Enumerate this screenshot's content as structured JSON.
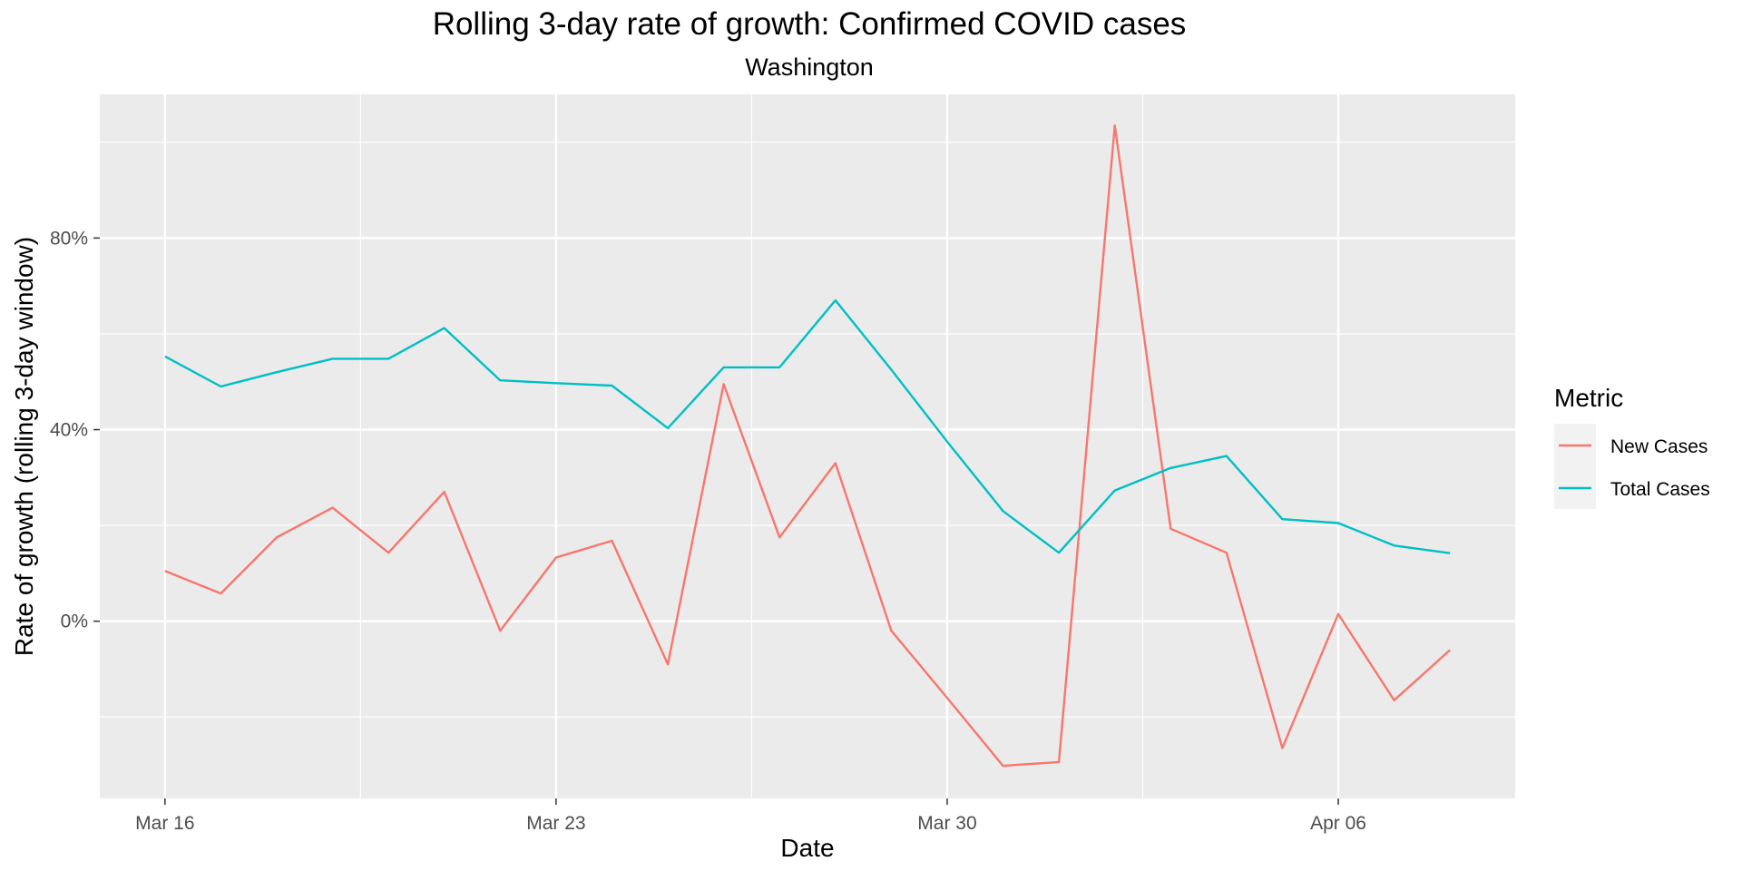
{
  "chart_data": {
    "type": "line",
    "title": "Rolling 3-day rate of growth: Confirmed COVID cases",
    "subtitle": "Washington",
    "xlabel": "Date",
    "ylabel": "Rate of growth (rolling 3-day window)",
    "x": [
      "2020-03-16",
      "2020-03-17",
      "2020-03-18",
      "2020-03-19",
      "2020-03-20",
      "2020-03-21",
      "2020-03-22",
      "2020-03-23",
      "2020-03-24",
      "2020-03-25",
      "2020-03-26",
      "2020-03-27",
      "2020-03-28",
      "2020-03-29",
      "2020-03-30",
      "2020-03-31",
      "2020-04-01",
      "2020-04-02",
      "2020-04-03",
      "2020-04-04",
      "2020-04-05",
      "2020-04-06",
      "2020-04-07",
      "2020-04-08"
    ],
    "x_ticks": [
      {
        "date": "2020-03-16",
        "label": "Mar 16"
      },
      {
        "date": "2020-03-23",
        "label": "Mar 23"
      },
      {
        "date": "2020-03-30",
        "label": "Mar 30"
      },
      {
        "date": "2020-04-06",
        "label": "Apr 06"
      }
    ],
    "x_minor_ticks": [
      "2020-03-19T12:00",
      "2020-03-26T12:00",
      "2020-04-02T12:00"
    ],
    "xlim": [
      "2020-03-14T20:00",
      "2020-04-09T04:00"
    ],
    "y_ticks": [
      {
        "value": 0,
        "label": "0%"
      },
      {
        "value": 0.4,
        "label": "40%"
      },
      {
        "value": 0.8,
        "label": "80%"
      }
    ],
    "y_minor_ticks": [
      -0.2,
      0.2,
      0.6,
      1.0
    ],
    "ylim": [
      -0.37,
      1.1
    ],
    "grid": true,
    "legend": {
      "title": "Metric",
      "position": "right"
    },
    "series": [
      {
        "name": "New Cases",
        "color": "#F8766D",
        "values": [
          0.105,
          0.058,
          0.175,
          0.237,
          0.143,
          0.27,
          -0.02,
          0.133,
          0.168,
          -0.09,
          0.495,
          0.175,
          0.33,
          -0.02,
          -0.16,
          -0.302,
          -0.294,
          1.035,
          0.193,
          0.143,
          -0.265,
          0.015,
          -0.165,
          -0.06
        ]
      },
      {
        "name": "Total Cases",
        "color": "#00BFC4",
        "values": [
          0.553,
          0.49,
          0.52,
          0.548,
          0.548,
          0.612,
          0.503,
          0.497,
          0.492,
          0.403,
          0.53,
          0.53,
          0.67,
          0.525,
          0.375,
          0.23,
          0.143,
          0.273,
          0.32,
          0.345,
          0.213,
          0.205,
          0.158,
          0.142
        ]
      }
    ]
  }
}
